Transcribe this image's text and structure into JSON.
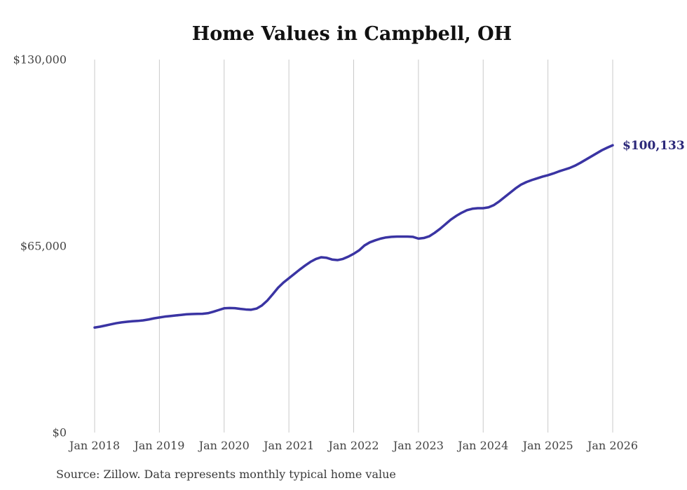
{
  "header": {
    "title": "Home Values in Campbell, OH"
  },
  "footer": {
    "source_note": "Source: Zillow. Data represents monthly typical home value"
  },
  "colors": {
    "line": "#3a34a3",
    "end_label": "#2b2879",
    "grid": "#c9c9c9",
    "tick_text": "#444444",
    "title_text": "#111111",
    "source_text": "#3a3a3a",
    "background": "#ffffff"
  },
  "chart_data": {
    "type": "line",
    "title": "Home Values in Campbell, OH",
    "xlabel": "",
    "ylabel": "",
    "ylim": [
      0,
      130000
    ],
    "y_ticks": [
      0,
      65000,
      130000
    ],
    "y_tick_labels": [
      "$0",
      "$65,000",
      "$130,000"
    ],
    "x_tick_labels": [
      "Jan 2018",
      "Jan 2019",
      "Jan 2020",
      "Jan 2021",
      "Jan 2022",
      "Jan 2023",
      "Jan 2024",
      "Jan 2025",
      "Jan 2026"
    ],
    "grid": "vertical-only",
    "legend_position": "none",
    "end_point_label": "$100,133",
    "end_point_value": 100133,
    "series": [
      {
        "name": "Typical home value",
        "interval": "monthly",
        "start_month": "Jan 2018",
        "end_month": "Jan 2026",
        "values": [
          36600,
          36900,
          37300,
          37700,
          38100,
          38400,
          38600,
          38800,
          38900,
          39100,
          39400,
          39800,
          40100,
          40400,
          40600,
          40800,
          41000,
          41200,
          41300,
          41350,
          41400,
          41600,
          42100,
          42700,
          43300,
          43400,
          43350,
          43100,
          42900,
          42800,
          43200,
          44300,
          46000,
          48200,
          50500,
          52300,
          53800,
          55300,
          56800,
          58200,
          59500,
          60500,
          61100,
          60900,
          60300,
          60100,
          60500,
          61300,
          62300,
          63500,
          65200,
          66300,
          67000,
          67600,
          68000,
          68200,
          68300,
          68300,
          68300,
          68200,
          67600,
          67800,
          68400,
          69600,
          71000,
          72600,
          74200,
          75500,
          76600,
          77500,
          78000,
          78200,
          78200,
          78500,
          79300,
          80600,
          82100,
          83600,
          85100,
          86400,
          87300,
          88000,
          88600,
          89200,
          89700,
          90300,
          91000,
          91600,
          92200,
          93000,
          94000,
          95100,
          96200,
          97300,
          98400,
          99300,
          100133
        ]
      }
    ]
  }
}
